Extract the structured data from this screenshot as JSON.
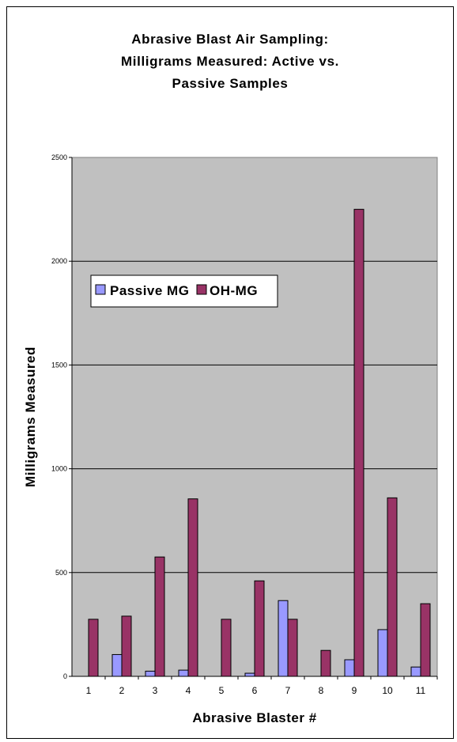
{
  "chart_data": {
    "type": "bar",
    "title_lines": [
      "Abrasive Blast Air Sampling:",
      "Milligrams Measured: Active vs.",
      "Passive Samples"
    ],
    "xlabel": "Abrasive Blaster #",
    "ylabel": "Milligrams Measured",
    "categories": [
      "1",
      "2",
      "3",
      "4",
      "5",
      "6",
      "7",
      "8",
      "9",
      "10",
      "11"
    ],
    "ylim": [
      0,
      2500
    ],
    "yticks": [
      "0",
      "500",
      "1000",
      "1500",
      "2000",
      "2500"
    ],
    "series": [
      {
        "name": "Passive MG",
        "color": "#9999ff",
        "values": [
          0,
          105,
          25,
          30,
          0,
          15,
          365,
          0,
          80,
          225,
          45
        ]
      },
      {
        "name": "OH-MG",
        "color": "#993366",
        "values": [
          275,
          290,
          575,
          855,
          275,
          460,
          275,
          125,
          2250,
          860,
          350
        ]
      }
    ],
    "plot_background": "#c0c0c0",
    "grid": true,
    "legend_position": "upper-left"
  }
}
